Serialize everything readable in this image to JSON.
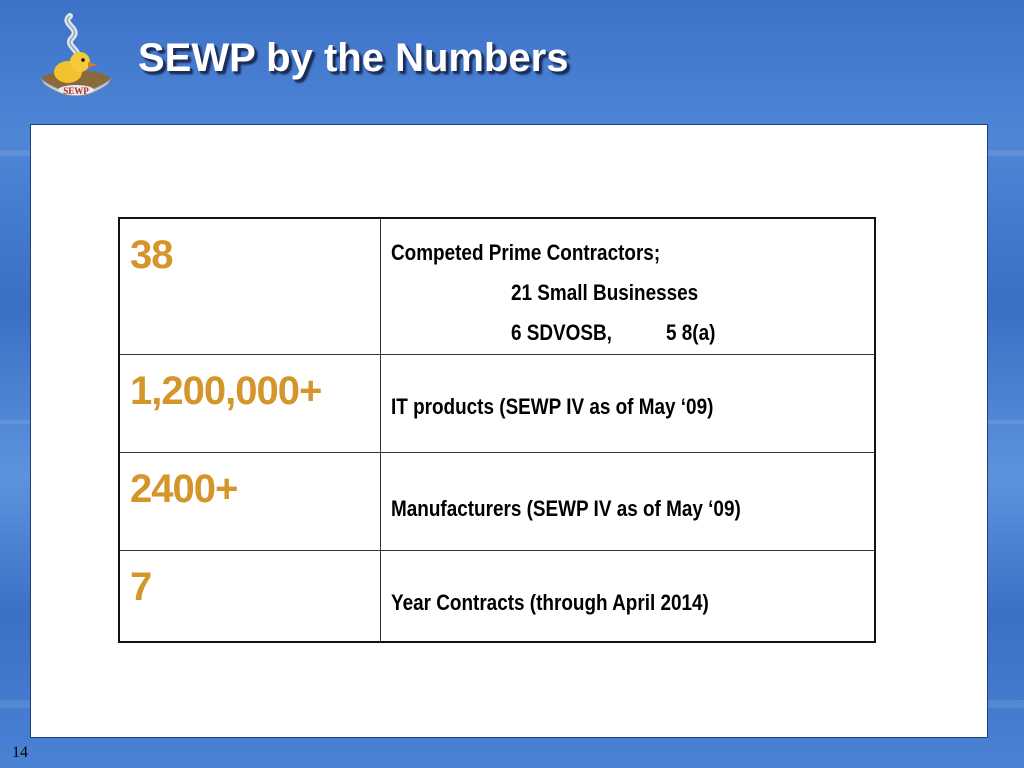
{
  "slide": {
    "title": "SEWP by the Numbers",
    "number": "14"
  },
  "logo": {
    "text": "SEWP",
    "icon": "rubber-duck-icon"
  },
  "table": {
    "rows": [
      {
        "number": "38",
        "lines": [
          "Competed Prime Contractors;",
          "21 Small Businesses",
          "6 SDVOSB,",
          "5 8(a)"
        ]
      },
      {
        "number": "1,200,000+",
        "lines": [
          "IT products (SEWP IV as of May ‘09)"
        ]
      },
      {
        "number": "2400+",
        "lines": [
          "Manufacturers (SEWP IV as of May ‘09)"
        ]
      },
      {
        "number": "7",
        "lines": [
          "Year Contracts (through April 2014)"
        ]
      }
    ]
  },
  "colors": {
    "accent_number": "#d4952a",
    "background": "#4a80d2",
    "title": "#ffffff"
  }
}
